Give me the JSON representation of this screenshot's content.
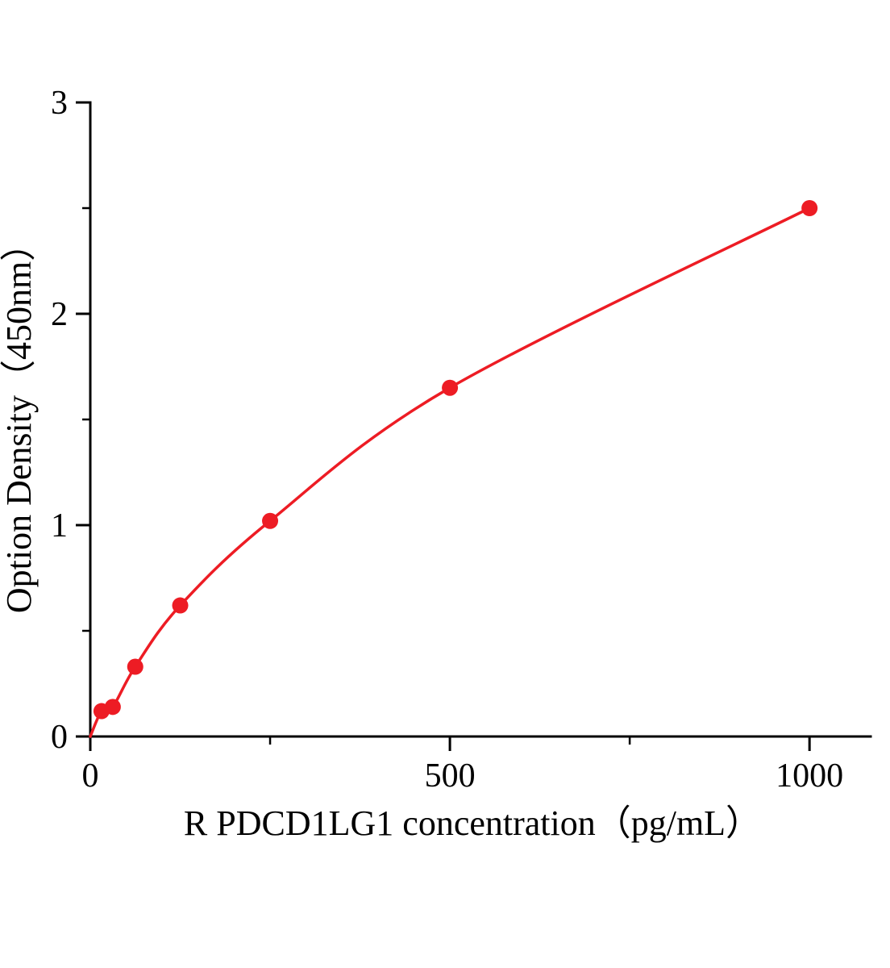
{
  "chart_data": {
    "type": "line",
    "title": "",
    "xlabel": "R PDCD1LG1  concentration（pg/mL）",
    "ylabel": "Option Density（450nm）",
    "x": [
      15.6,
      31.25,
      62.5,
      125,
      250,
      500,
      1000
    ],
    "y": [
      0.12,
      0.14,
      0.33,
      0.62,
      1.02,
      1.65,
      2.5
    ],
    "curve_start": [
      0,
      0
    ],
    "xlim": [
      0,
      1085
    ],
    "ylim": [
      0,
      3
    ],
    "x_major_ticks": [
      0,
      500,
      1000
    ],
    "x_minor_ticks": [
      250,
      750
    ],
    "y_major_ticks": [
      0,
      1,
      2,
      3
    ],
    "y_minor_ticks": [
      0.5,
      1.5,
      2.5
    ],
    "x_tick_labels": [
      "0",
      "500",
      "1000"
    ],
    "y_tick_labels": [
      "0",
      "1",
      "2",
      "3"
    ],
    "grid": false,
    "legend": null,
    "line_color": "#ed1c24",
    "marker_color": "#ed1c24",
    "axis_color": "#000000"
  }
}
